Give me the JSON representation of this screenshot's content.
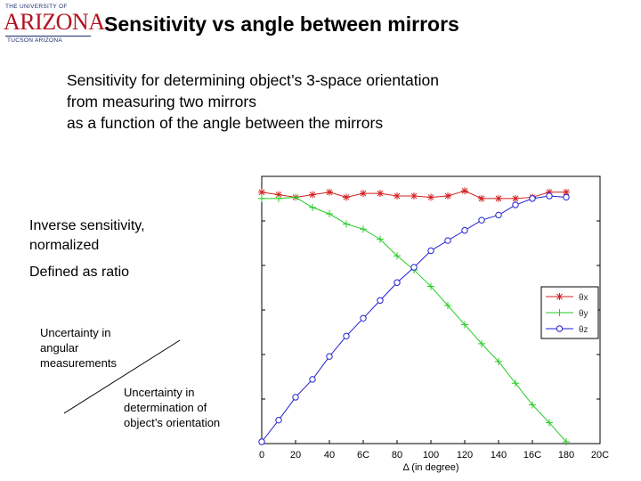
{
  "logo": {
    "top_text": "THE UNIVERSITY OF",
    "name": "ARIZONA.",
    "bottom_text": "TUCSON ARIZONA"
  },
  "slide": {
    "title": "Sensitivity vs angle between mirrors",
    "subtitle_lines": [
      "Sensitivity for determining object’s 3-space orientation",
      "from measuring two mirrors",
      "as a function of the angle between the mirrors"
    ],
    "note_lines": [
      "Inverse sensitivity,",
      "normalized"
    ],
    "defined_as": "Defined as ratio",
    "numerator_lines": [
      "Uncertainty in",
      "angular",
      "measurements"
    ],
    "denominator_lines": [
      "Uncertainty in",
      "determination of",
      "object’s orientation"
    ]
  },
  "colors": {
    "theta_x": "#d42020",
    "theta_y": "#22cc22",
    "theta_z": "#2020d0"
  },
  "chart_data": {
    "type": "line",
    "xlabel": "Δ (in degree)",
    "x_ticks": [
      "0",
      "20",
      "40",
      "6C",
      "80",
      "100",
      "120",
      "140",
      "16C",
      "180",
      "20C"
    ],
    "xlim": [
      0,
      200
    ],
    "ylim": [
      0,
      1
    ],
    "grid": false,
    "legend_position": "right",
    "x": [
      0,
      10,
      20,
      30,
      40,
      50,
      60,
      70,
      80,
      90,
      100,
      110,
      120,
      130,
      140,
      150,
      160,
      170,
      180
    ],
    "series": [
      {
        "name": "θx",
        "marker": "*",
        "values": [
          0.98,
          0.97,
          0.96,
          0.97,
          0.98,
          0.96,
          0.975,
          0.975,
          0.965,
          0.965,
          0.96,
          0.965,
          0.985,
          0.955,
          0.955,
          0.955,
          0.96,
          0.98,
          0.98
        ]
      },
      {
        "name": "θy",
        "marker": "+",
        "values": [
          0.955,
          0.955,
          0.96,
          0.92,
          0.895,
          0.855,
          0.835,
          0.795,
          0.73,
          0.675,
          0.61,
          0.535,
          0.46,
          0.385,
          0.315,
          0.23,
          0.145,
          0.075,
          0.0
        ]
      },
      {
        "name": "θz",
        "marker": "o",
        "values": [
          0.0,
          0.085,
          0.175,
          0.245,
          0.335,
          0.415,
          0.485,
          0.555,
          0.625,
          0.685,
          0.75,
          0.79,
          0.83,
          0.87,
          0.89,
          0.93,
          0.955,
          0.965,
          0.96
        ]
      }
    ]
  }
}
